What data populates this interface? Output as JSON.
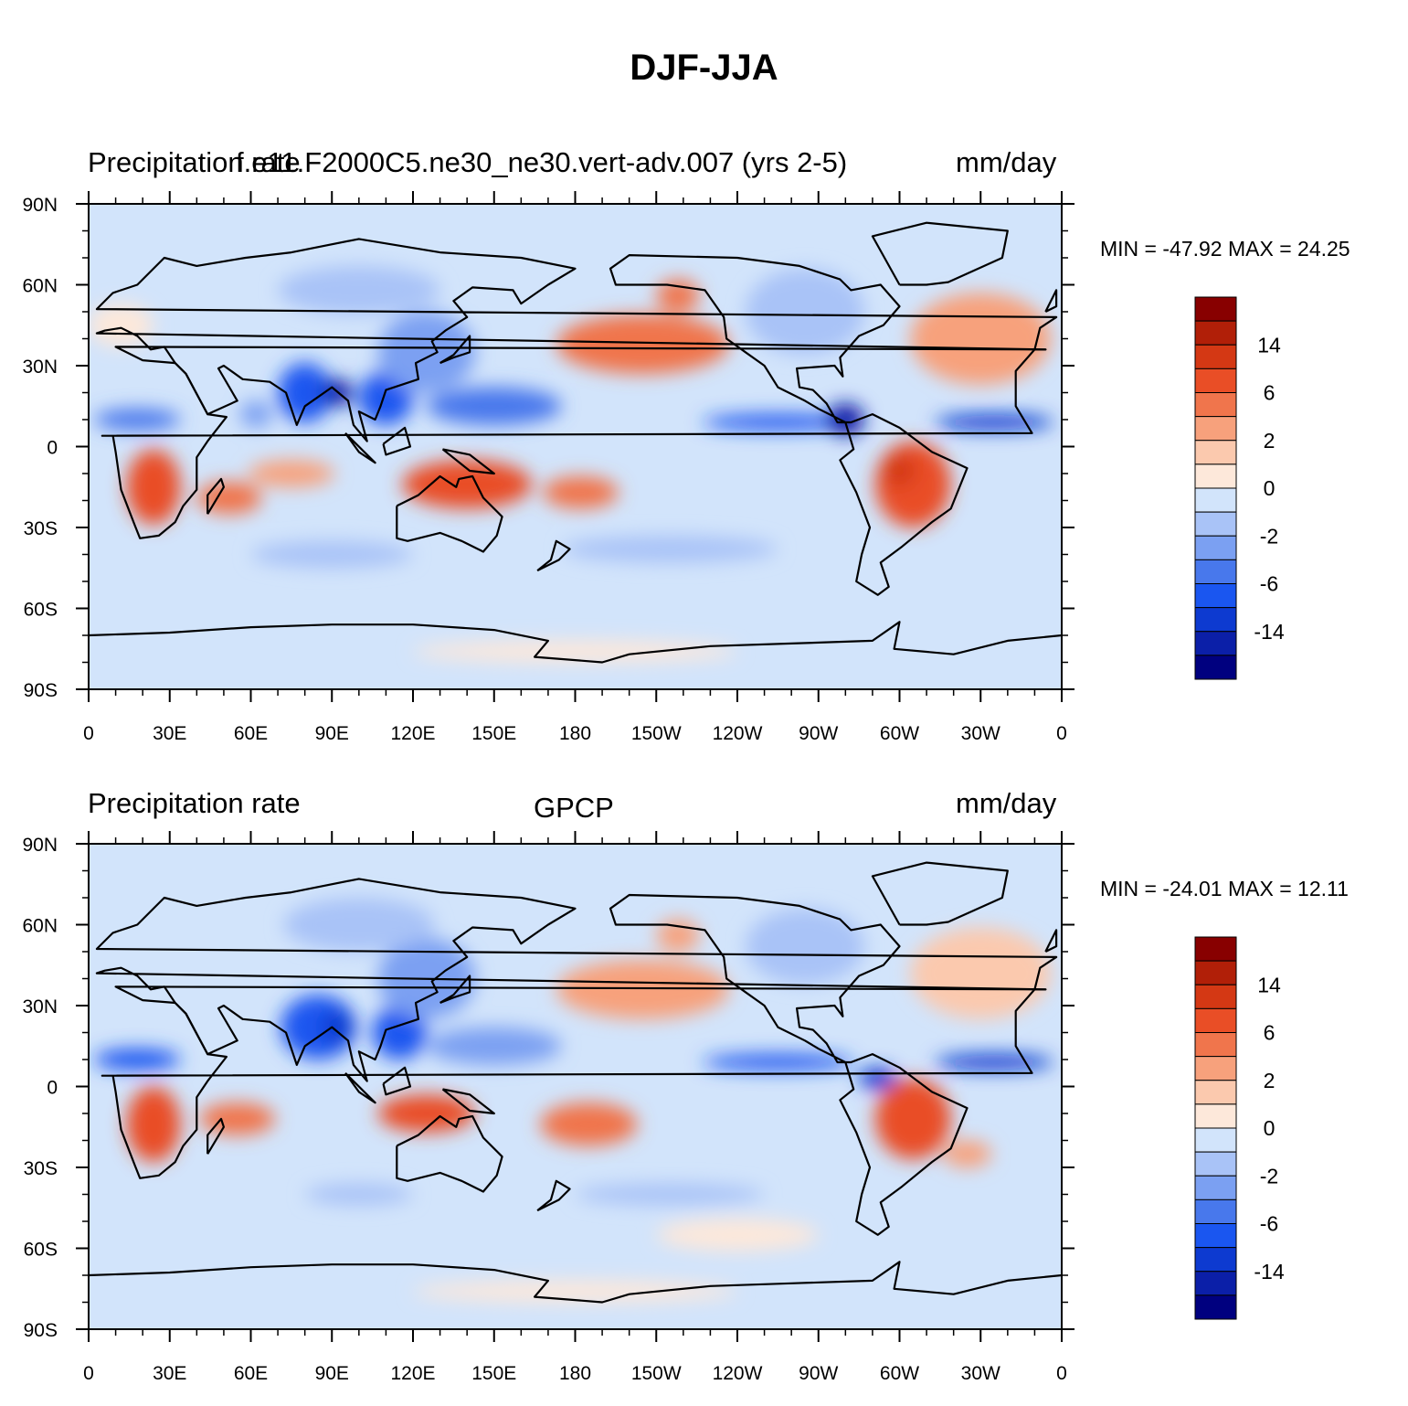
{
  "title": "DJF-JJA",
  "colors": {
    "levels": [
      "#00007f",
      "#0b1fa8",
      "#0d3ad0",
      "#1a56f0",
      "#4878ec",
      "#7ba0f2",
      "#a9c3f7",
      "#d2e4fb",
      "#fde8da",
      "#fbc9ae",
      "#f7a17c",
      "#f0754c",
      "#e94e26",
      "#d43814",
      "#b11f08",
      "#880000"
    ],
    "coast": "#000000"
  },
  "chart_data": [
    {
      "type": "heatmap",
      "title_left": "Precipitation rate",
      "title_center": "f.e11.F2000C5.ne30_ne30.vert-adv.007 (yrs 2-5)",
      "title_right": "mm/day",
      "min_max": "MIN = -47.92 MAX =  24.25",
      "xlim": [
        0,
        360
      ],
      "ylim": [
        -90,
        90
      ],
      "x_ticks": [
        "0",
        "30E",
        "60E",
        "90E",
        "120E",
        "150E",
        "180",
        "150W",
        "120W",
        "90W",
        "60W",
        "30W",
        "0"
      ],
      "y_ticks": [
        "90N",
        "60N",
        "30N",
        "0",
        "30S",
        "60S",
        "90S"
      ],
      "colorbar_labels": [
        "14",
        "6",
        "2",
        "0",
        "-2",
        "-6",
        "-14"
      ],
      "regions": [
        {
          "name": "north-pacific-dry",
          "lon": 205,
          "lat": 38,
          "rx": 32,
          "ry": 11,
          "level": 11
        },
        {
          "name": "north-atlantic-dry",
          "lon": 330,
          "lat": 40,
          "rx": 26,
          "ry": 17,
          "level": 10
        },
        {
          "name": "west-pacific-itcz-south",
          "lon": 140,
          "lat": -14,
          "rx": 24,
          "ry": 9,
          "level": 12
        },
        {
          "name": "south-pacific-spcz",
          "lon": 182,
          "lat": -17,
          "rx": 14,
          "ry": 6,
          "level": 11
        },
        {
          "name": "southern-africa",
          "lon": 24,
          "lat": -15,
          "rx": 10,
          "ry": 14,
          "level": 12
        },
        {
          "name": "madagascar-ocean",
          "lon": 52,
          "lat": -19,
          "rx": 12,
          "ry": 6,
          "level": 11
        },
        {
          "name": "south-america",
          "lon": 305,
          "lat": -14,
          "rx": 14,
          "ry": 16,
          "level": 12
        },
        {
          "name": "south-america-core",
          "lon": 300,
          "lat": -9,
          "rx": 6,
          "ry": 6,
          "level": 13
        },
        {
          "name": "indian-ocean-south",
          "lon": 75,
          "lat": -10,
          "rx": 16,
          "ry": 5,
          "level": 10
        },
        {
          "name": "india-monsoon",
          "lon": 80,
          "lat": 20,
          "rx": 10,
          "ry": 11,
          "level": 3
        },
        {
          "name": "bay-of-bengal",
          "lon": 92,
          "lat": 20,
          "rx": 6,
          "ry": 5,
          "level": 1
        },
        {
          "name": "south-china-sea",
          "lon": 110,
          "lat": 18,
          "rx": 10,
          "ry": 10,
          "level": 3
        },
        {
          "name": "east-asia",
          "lon": 125,
          "lat": 35,
          "rx": 18,
          "ry": 15,
          "level": 5
        },
        {
          "name": "west-pacific-north",
          "lon": 150,
          "lat": 15,
          "rx": 25,
          "ry": 7,
          "level": 4
        },
        {
          "name": "east-pacific-itcz",
          "lon": 255,
          "lat": 9,
          "rx": 28,
          "ry": 3,
          "level": 3
        },
        {
          "name": "central-america",
          "lon": 280,
          "lat": 10,
          "rx": 7,
          "ry": 6,
          "level": 1
        },
        {
          "name": "atlantic-itcz",
          "lon": 335,
          "lat": 9,
          "rx": 22,
          "ry": 3,
          "level": 2
        },
        {
          "name": "sahel-africa",
          "lon": 18,
          "lat": 10,
          "rx": 16,
          "ry": 4,
          "level": 4
        },
        {
          "name": "arabian-sea",
          "lon": 62,
          "lat": 12,
          "rx": 6,
          "ry": 5,
          "level": 5
        },
        {
          "name": "siberia",
          "lon": 100,
          "lat": 58,
          "rx": 30,
          "ry": 9,
          "level": 6
        },
        {
          "name": "north-america",
          "lon": 265,
          "lat": 50,
          "rx": 22,
          "ry": 16,
          "level": 6
        },
        {
          "name": "southern-pacific-storm",
          "lon": 215,
          "lat": -38,
          "rx": 40,
          "ry": 5,
          "level": 6
        },
        {
          "name": "south-indian-storm",
          "lon": 90,
          "lat": -40,
          "rx": 30,
          "ry": 5,
          "level": 6
        },
        {
          "name": "antarctic-coast",
          "lon": 180,
          "lat": -76,
          "rx": 60,
          "ry": 4,
          "level": 8
        },
        {
          "name": "europe-dry",
          "lon": 12,
          "lat": 45,
          "rx": 12,
          "ry": 8,
          "level": 8
        },
        {
          "name": "gulf-alaska-dry",
          "lon": 218,
          "lat": 56,
          "rx": 8,
          "ry": 6,
          "level": 11
        }
      ]
    },
    {
      "type": "heatmap",
      "title_left": "Precipitation rate",
      "title_center": "GPCP",
      "title_right": "mm/day",
      "min_max": "MIN = -24.01 MAX =  12.11",
      "xlim": [
        0,
        360
      ],
      "ylim": [
        -90,
        90
      ],
      "x_ticks": [
        "0",
        "30E",
        "60E",
        "90E",
        "120E",
        "150E",
        "180",
        "150W",
        "120W",
        "90W",
        "60W",
        "30W",
        "0"
      ],
      "y_ticks": [
        "90N",
        "60N",
        "30N",
        "0",
        "30S",
        "60S",
        "90S"
      ],
      "colorbar_labels": [
        "14",
        "6",
        "2",
        "0",
        "-2",
        "-6",
        "-14"
      ],
      "regions": [
        {
          "name": "north-pacific-dry",
          "lon": 205,
          "lat": 36,
          "rx": 32,
          "ry": 11,
          "level": 10
        },
        {
          "name": "north-atlantic-dry",
          "lon": 330,
          "lat": 42,
          "rx": 26,
          "ry": 17,
          "level": 9
        },
        {
          "name": "indonesia-australia",
          "lon": 125,
          "lat": -10,
          "rx": 18,
          "ry": 7,
          "level": 12
        },
        {
          "name": "south-pacific-spcz",
          "lon": 185,
          "lat": -14,
          "rx": 18,
          "ry": 8,
          "level": 11
        },
        {
          "name": "southern-africa",
          "lon": 24,
          "lat": -14,
          "rx": 10,
          "ry": 14,
          "level": 12
        },
        {
          "name": "madagascar-ocean",
          "lon": 55,
          "lat": -12,
          "rx": 14,
          "ry": 6,
          "level": 11
        },
        {
          "name": "south-america",
          "lon": 305,
          "lat": -12,
          "rx": 14,
          "ry": 15,
          "level": 12
        },
        {
          "name": "south-atlantic-sacz",
          "lon": 325,
          "lat": -25,
          "rx": 9,
          "ry": 5,
          "level": 10
        },
        {
          "name": "india-monsoon",
          "lon": 85,
          "lat": 22,
          "rx": 14,
          "ry": 12,
          "level": 3
        },
        {
          "name": "bay-of-bengal",
          "lon": 92,
          "lat": 22,
          "rx": 6,
          "ry": 6,
          "level": 2
        },
        {
          "name": "south-china-sea",
          "lon": 115,
          "lat": 20,
          "rx": 10,
          "ry": 10,
          "level": 3
        },
        {
          "name": "east-asia",
          "lon": 125,
          "lat": 40,
          "rx": 18,
          "ry": 15,
          "level": 5
        },
        {
          "name": "west-pacific-north",
          "lon": 150,
          "lat": 15,
          "rx": 25,
          "ry": 7,
          "level": 5
        },
        {
          "name": "east-pacific-itcz",
          "lon": 255,
          "lat": 9,
          "rx": 28,
          "ry": 3,
          "level": 3
        },
        {
          "name": "amazon-north",
          "lon": 292,
          "lat": 3,
          "rx": 7,
          "ry": 4,
          "level": 2
        },
        {
          "name": "atlantic-itcz",
          "lon": 335,
          "lat": 9,
          "rx": 22,
          "ry": 3,
          "level": 2
        },
        {
          "name": "sahel-africa",
          "lon": 18,
          "lat": 10,
          "rx": 16,
          "ry": 4,
          "level": 3
        },
        {
          "name": "siberia",
          "lon": 100,
          "lat": 60,
          "rx": 28,
          "ry": 10,
          "level": 6
        },
        {
          "name": "north-america",
          "lon": 265,
          "lat": 52,
          "rx": 22,
          "ry": 14,
          "level": 6
        },
        {
          "name": "southern-pacific-storm",
          "lon": 215,
          "lat": -40,
          "rx": 35,
          "ry": 4,
          "level": 6
        },
        {
          "name": "south-indian-storm",
          "lon": 100,
          "lat": -40,
          "rx": 20,
          "ry": 4,
          "level": 6
        },
        {
          "name": "antarctic-coast",
          "lon": 180,
          "lat": -76,
          "rx": 60,
          "ry": 4,
          "level": 8
        },
        {
          "name": "southern-ocean-east",
          "lon": 240,
          "lat": -55,
          "rx": 30,
          "ry": 6,
          "level": 8
        },
        {
          "name": "gulf-alaska-dry",
          "lon": 218,
          "lat": 56,
          "rx": 8,
          "ry": 6,
          "level": 10
        }
      ]
    }
  ]
}
